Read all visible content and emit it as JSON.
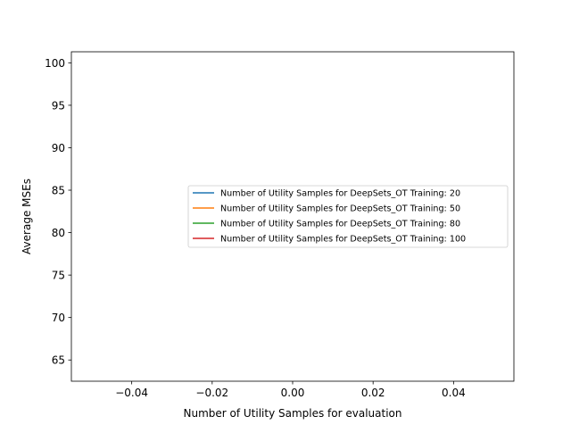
{
  "chart_data": {
    "type": "line",
    "title": "",
    "xlabel": "Number of Utility Samples for evaluation",
    "ylabel": "Average MSEs",
    "xlim": [
      -0.055,
      0.055
    ],
    "ylim": [
      62.5,
      101.3
    ],
    "x_ticks": [
      -0.04,
      -0.02,
      0.0,
      0.02,
      0.04
    ],
    "x_tick_labels": [
      "−0.04",
      "−0.02",
      "0.00",
      "0.02",
      "0.04"
    ],
    "y_ticks": [
      65,
      70,
      75,
      80,
      85,
      90,
      95,
      100
    ],
    "y_tick_labels": [
      "65",
      "70",
      "75",
      "80",
      "85",
      "90",
      "95",
      "100"
    ],
    "grid": false,
    "legend_position": "center-right",
    "series": [
      {
        "name": "Number of Utility Samples for DeepSets_OT Training: 20",
        "color": "#1f77b4",
        "x": [],
        "y": []
      },
      {
        "name": "Number of Utility Samples for DeepSets_OT Training: 50",
        "color": "#ff7f0e",
        "x": [],
        "y": []
      },
      {
        "name": "Number of Utility Samples for DeepSets_OT Training: 80",
        "color": "#2ca02c",
        "x": [],
        "y": []
      },
      {
        "name": "Number of Utility Samples for DeepSets_OT Training: 100",
        "color": "#d62728",
        "x": [],
        "y": []
      }
    ]
  }
}
